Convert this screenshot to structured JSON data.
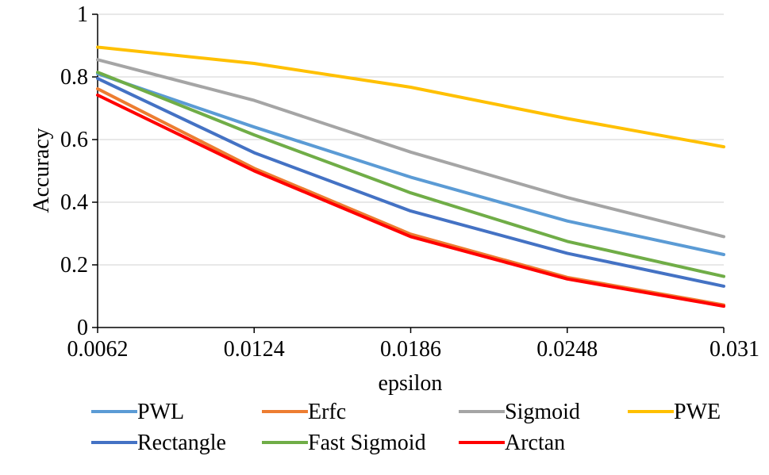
{
  "chart_data": {
    "type": "line",
    "title": "",
    "xlabel": "epsilon",
    "ylabel": "Accuracy",
    "categories": [
      "0.0062",
      "0.0124",
      "0.0186",
      "0.0248",
      "0.031"
    ],
    "ylim": [
      0,
      1
    ],
    "yticks": [
      "0",
      "0.2",
      "0.4",
      "0.6",
      "0.8",
      "1"
    ],
    "grid": true,
    "legend_position": "bottom",
    "series": [
      {
        "name": "PWL",
        "color": "#5b9bd5",
        "values": [
          0.81,
          0.64,
          0.48,
          0.34,
          0.233
        ]
      },
      {
        "name": "Erfc",
        "color": "#ed7d31",
        "values": [
          0.762,
          0.508,
          0.298,
          0.16,
          0.072
        ]
      },
      {
        "name": "Sigmoid",
        "color": "#a5a5a5",
        "values": [
          0.855,
          0.725,
          0.56,
          0.415,
          0.29
        ]
      },
      {
        "name": "PWE",
        "color": "#ffc000",
        "values": [
          0.895,
          0.843,
          0.767,
          0.667,
          0.577
        ]
      },
      {
        "name": "Rectangle",
        "color": "#4472c4",
        "values": [
          0.795,
          0.558,
          0.372,
          0.237,
          0.132
        ]
      },
      {
        "name": "Fast Sigmoid",
        "color": "#70ad47",
        "values": [
          0.815,
          0.615,
          0.43,
          0.275,
          0.163
        ]
      },
      {
        "name": "Arctan",
        "color": "#ff0000",
        "values": [
          0.742,
          0.5,
          0.29,
          0.155,
          0.068
        ]
      }
    ]
  }
}
